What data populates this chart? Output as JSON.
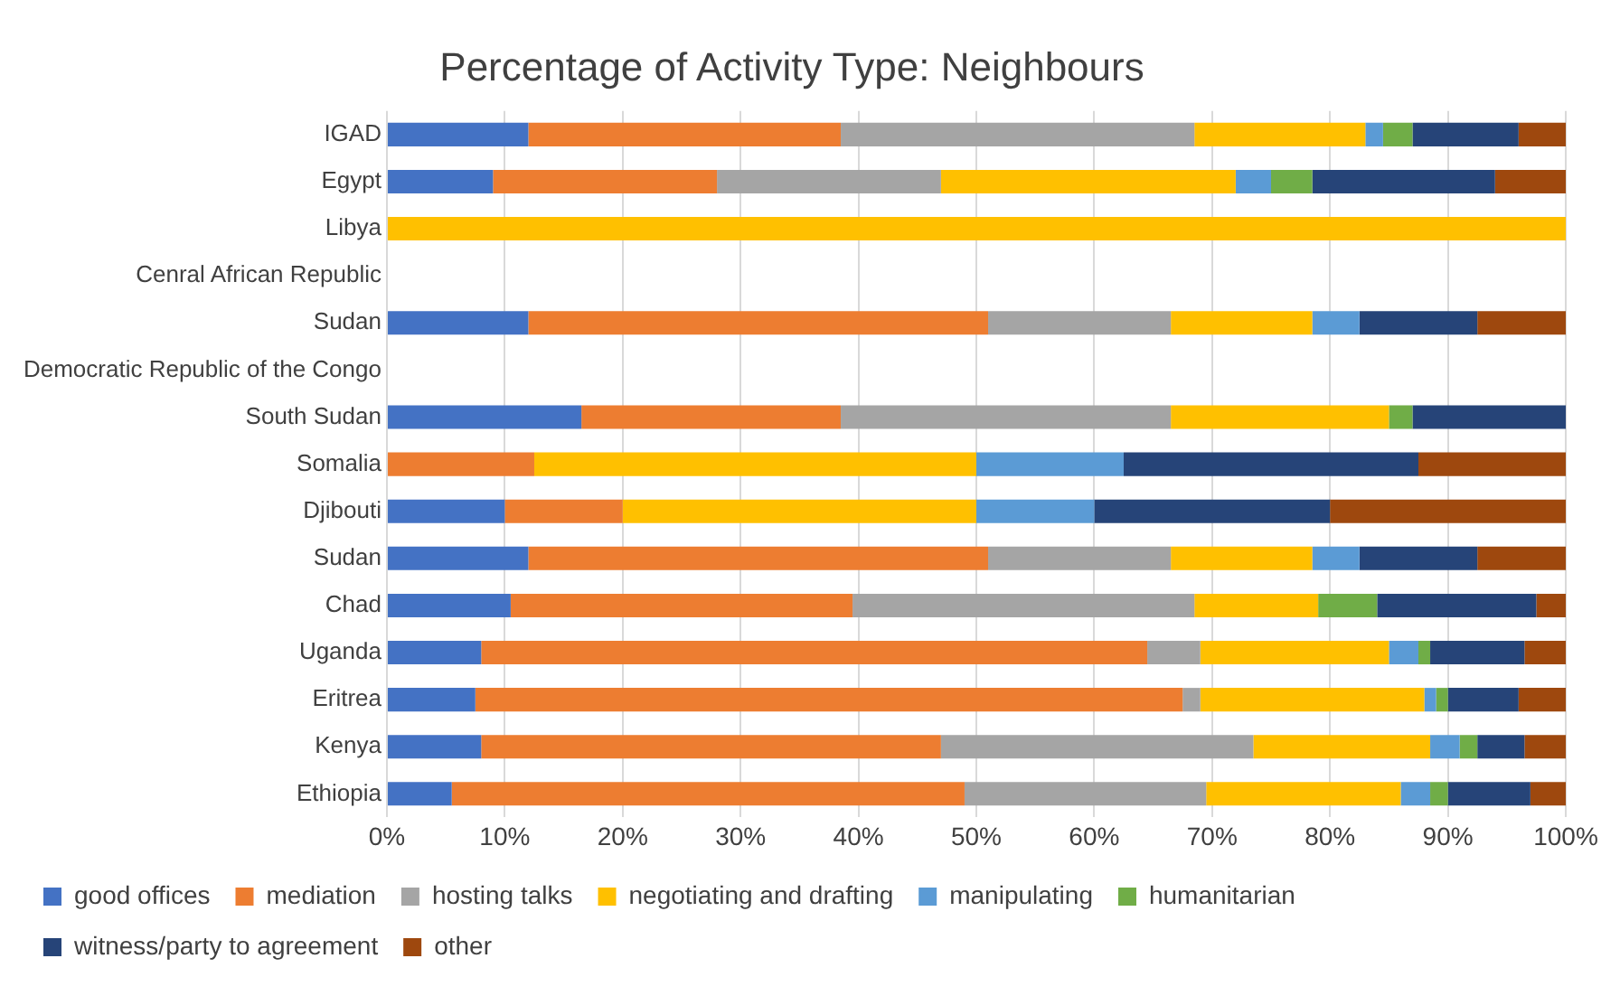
{
  "chart_data": {
    "type": "bar",
    "orientation": "horizontal",
    "stacked": true,
    "title": "Percentage of Activity Type: Neighbours",
    "categories": [
      "IGAD",
      "Egypt",
      "Libya",
      "Cenral African Republic",
      "Sudan",
      "Democratic Republic of the Congo",
      "South Sudan",
      "Somalia",
      "Djibouti",
      "Sudan",
      "Chad",
      "Uganda",
      "Eritrea",
      "Kenya",
      "Ethiopia"
    ],
    "series": [
      {
        "name": "good offices",
        "color": "#4472c4",
        "values": [
          12,
          9,
          0,
          null,
          12,
          null,
          16.5,
          0,
          10,
          12,
          10.5,
          8,
          7.5,
          8,
          5.5
        ]
      },
      {
        "name": "mediation",
        "color": "#ed7d31",
        "values": [
          26.5,
          19,
          0,
          null,
          39,
          null,
          22,
          12.5,
          10,
          39,
          29,
          56.5,
          60,
          39,
          43.5
        ]
      },
      {
        "name": "hosting talks",
        "color": "#a5a5a5",
        "values": [
          30,
          19,
          0,
          null,
          15.5,
          null,
          28,
          0,
          0,
          15.5,
          29,
          4.5,
          1.5,
          26.5,
          20.5
        ]
      },
      {
        "name": "negotiating and drafting",
        "color": "#ffc000",
        "values": [
          14.5,
          25,
          100,
          null,
          12,
          null,
          18.5,
          37.5,
          30,
          12,
          10.5,
          16,
          19,
          15,
          16.5
        ]
      },
      {
        "name": "manipulating",
        "color": "#5b9bd5",
        "values": [
          1.5,
          3,
          0,
          null,
          4,
          null,
          0,
          12.5,
          10,
          4,
          0,
          2.5,
          1,
          2.5,
          2.5
        ]
      },
      {
        "name": "humanitarian",
        "color": "#70ad47",
        "values": [
          2.5,
          3.5,
          0,
          null,
          0,
          null,
          2,
          0,
          0,
          0,
          5,
          1,
          1,
          1.5,
          1.5
        ]
      },
      {
        "name": "witness/party to agreement",
        "color": "#264478",
        "values": [
          9,
          15.5,
          0,
          null,
          10,
          null,
          13,
          25,
          20,
          10,
          13.5,
          8,
          6,
          4,
          7
        ]
      },
      {
        "name": "other",
        "color": "#9e480e",
        "values": [
          4,
          6,
          0,
          null,
          7.5,
          null,
          0,
          12.5,
          20,
          7.5,
          2.5,
          3.5,
          4,
          3.5,
          3
        ]
      }
    ],
    "xlim": [
      0,
      100
    ],
    "xticks": [
      {
        "value": 0,
        "label": "0%"
      },
      {
        "value": 10,
        "label": "10%"
      },
      {
        "value": 20,
        "label": "20%"
      },
      {
        "value": 30,
        "label": "30%"
      },
      {
        "value": 40,
        "label": "40%"
      },
      {
        "value": 50,
        "label": "50%"
      },
      {
        "value": 60,
        "label": "60%"
      },
      {
        "value": 70,
        "label": "70%"
      },
      {
        "value": 80,
        "label": "80%"
      },
      {
        "value": 90,
        "label": "90%"
      },
      {
        "value": 100,
        "label": "100%"
      }
    ],
    "grid": "x",
    "legend": "bottom"
  }
}
